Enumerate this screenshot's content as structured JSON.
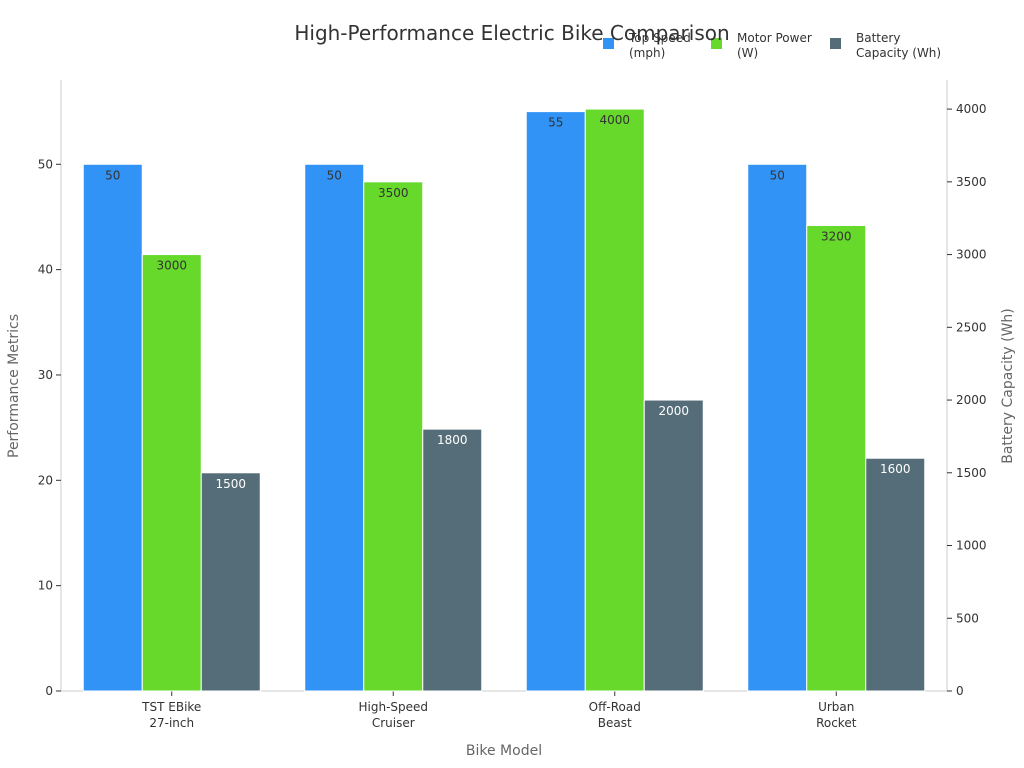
{
  "chart_data": {
    "type": "bar",
    "title": "High-Performance Electric Bike Comparison",
    "xlabel": "Bike Model",
    "ylabel": "Performance Metrics",
    "y2label": "Battery Capacity (Wh)",
    "categories": [
      [
        "TST EBike",
        "27-inch"
      ],
      [
        "High-Speed",
        "Cruiser"
      ],
      [
        "Off-Road",
        "Beast"
      ],
      [
        "Urban",
        "Rocket"
      ]
    ],
    "ylim": [
      0,
      58
    ],
    "y2lim": [
      0,
      4200
    ],
    "yticks": [
      0,
      10,
      20,
      30,
      40,
      50
    ],
    "y2ticks": [
      0,
      500,
      1000,
      1500,
      2000,
      2500,
      3000,
      3500,
      4000
    ],
    "legend_position": "top-right",
    "grid": false,
    "series": [
      {
        "name": "Top Speed (mph)",
        "legend_lines": [
          "Top Speed",
          "(mph)"
        ],
        "values": [
          50,
          50,
          55,
          50
        ],
        "axis": "left",
        "scale_to": "left",
        "color": "#3193f5",
        "label_color": "#333333"
      },
      {
        "name": "Motor Power (W)",
        "legend_lines": [
          "Motor Power",
          "(W)"
        ],
        "values": [
          3000,
          3500,
          4000,
          3200
        ],
        "axis": "left",
        "scale_to": "right",
        "color": "#66d92b",
        "label_color": "#333333"
      },
      {
        "name": "Battery Capacity (Wh)",
        "legend_lines": [
          "Battery",
          "Capacity (Wh)"
        ],
        "values": [
          1500,
          1800,
          2000,
          1600
        ],
        "axis": "right",
        "scale_to": "right",
        "color": "#546d78",
        "label_color": "#ffffff"
      }
    ]
  }
}
